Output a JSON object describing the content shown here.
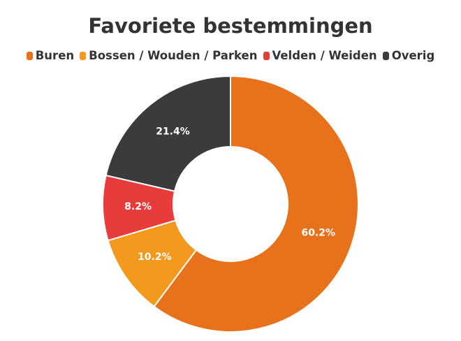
{
  "chart_data": {
    "type": "pie",
    "title": "Favoriete bestemmingen",
    "categories": [
      "Buren",
      "Bossen / Wouden / Parken",
      "Velden / Weiden",
      "Overig"
    ],
    "values": [
      60.2,
      10.2,
      8.2,
      21.4
    ],
    "value_labels": [
      "60.2%",
      "10.2%",
      "8.2%",
      "21.4%"
    ],
    "colors": [
      "#e8711c",
      "#f39a1e",
      "#e83c3c",
      "#3a3b3c"
    ]
  }
}
